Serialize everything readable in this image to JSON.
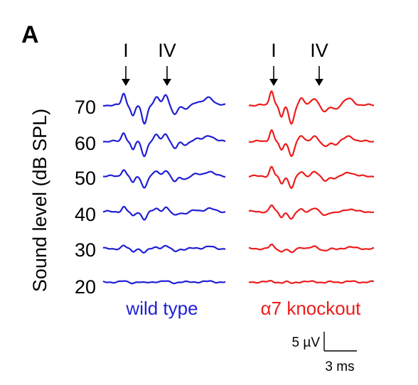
{
  "figure": {
    "panel_label": "A"
  },
  "chart_data": {
    "type": "line",
    "ylabel": "Sound level (dB SPL)",
    "levels": [
      "70",
      "60",
      "50",
      "40",
      "30",
      "20"
    ],
    "wave_markers": [
      "I",
      "IV"
    ],
    "series": [
      {
        "name": "wild type",
        "color": "#1f1fd6"
      },
      {
        "name": "α7 knockout",
        "color": "#ee1c1c"
      }
    ],
    "scale_bar": {
      "amplitude_label": "5 µV",
      "time_label": "3 ms"
    }
  }
}
